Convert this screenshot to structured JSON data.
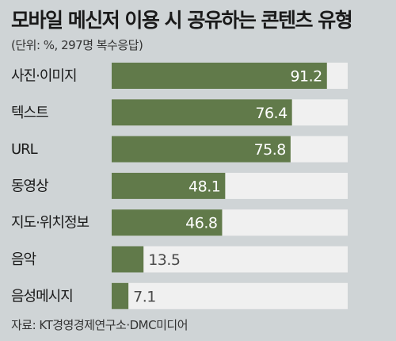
{
  "header": {
    "title": "모바일 메신저 이용 시 공유하는 콘텐츠 유형",
    "subtitle": "(단위: %, 297명 복수응답)"
  },
  "footer": {
    "source": "자료: KT경영경제연구소·DMC미디어"
  },
  "colors": {
    "background": "#cfd4d6",
    "bar": "#617a4a",
    "track": "#f0f0f0",
    "label_inside": "#ffffff",
    "label_outside": "#4a4a4a"
  },
  "chart_data": {
    "type": "bar",
    "orientation": "horizontal",
    "title": "모바일 메신저 이용 시 공유하는 콘텐츠 유형",
    "subtitle": "(단위: %, 297명 복수응답)",
    "xlim": [
      0,
      100
    ],
    "grid": false,
    "categories": [
      "사진·이미지",
      "텍스트",
      "URL",
      "동영상",
      "지도·위치정보",
      "음악",
      "음성메시지"
    ],
    "values": [
      91.2,
      76.4,
      75.8,
      48.1,
      46.8,
      13.5,
      7.1
    ],
    "value_labels": [
      "91.2",
      "76.4",
      "75.8",
      "48.1",
      "46.8",
      "13.5",
      "7.1"
    ]
  }
}
